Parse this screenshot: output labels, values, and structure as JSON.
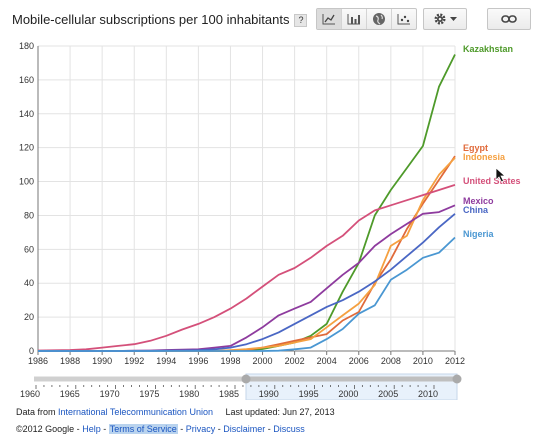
{
  "title": "Mobile-cellular subscriptions per 100 inhabitants",
  "help_label": "?",
  "toolbar": {
    "chart_types": [
      {
        "name": "line-chart-icon",
        "active": true
      },
      {
        "name": "bar-chart-icon",
        "active": false
      },
      {
        "name": "map-icon",
        "active": false
      },
      {
        "name": "bubble-chart-icon",
        "active": false
      }
    ],
    "settings_icon": "gear-icon",
    "link_icon": "link-icon"
  },
  "chart_data": {
    "type": "line",
    "title": "Mobile-cellular subscriptions per 100 inhabitants",
    "xlabel": "",
    "ylabel": "",
    "xlim": [
      1986,
      2012
    ],
    "ylim": [
      0,
      180
    ],
    "yticks": [
      0,
      20,
      40,
      60,
      80,
      100,
      120,
      140,
      160,
      180
    ],
    "xticks": [
      1986,
      1988,
      1990,
      1992,
      1994,
      1996,
      1998,
      2000,
      2002,
      2004,
      2006,
      2008,
      2010,
      2012
    ],
    "grid": true,
    "legend": "labels at right end of each line",
    "x": [
      1986,
      1987,
      1988,
      1989,
      1990,
      1991,
      1992,
      1993,
      1994,
      1995,
      1996,
      1997,
      1998,
      1999,
      2000,
      2001,
      2002,
      2003,
      2004,
      2005,
      2006,
      2007,
      2008,
      2009,
      2010,
      2011,
      2012
    ],
    "series": [
      {
        "name": "Kazakhstan",
        "color": "#4e9a2a",
        "values": [
          0,
          0,
          0,
          0,
          0,
          0,
          0,
          0,
          0,
          0,
          0,
          0,
          0.2,
          0.3,
          1.2,
          3,
          5,
          9,
          16,
          35,
          52,
          80,
          95,
          108,
          121,
          156,
          175
        ]
      },
      {
        "name": "Egypt",
        "color": "#e06a3a",
        "values": [
          0,
          0,
          0,
          0,
          0,
          0,
          0,
          0,
          0,
          0,
          0,
          0,
          0.2,
          0.6,
          2,
          4,
          6,
          8,
          10,
          18,
          23,
          40,
          54,
          72,
          87,
          101,
          115
        ]
      },
      {
        "name": "Indonesia",
        "color": "#f5a040",
        "values": [
          0,
          0,
          0,
          0,
          0,
          0,
          0,
          0,
          0,
          0,
          0,
          0,
          0.5,
          1.1,
          2,
          3,
          5,
          7,
          14,
          21,
          28,
          39,
          62,
          68,
          89,
          104,
          114
        ]
      },
      {
        "name": "United States",
        "color": "#d4507a",
        "values": [
          0.3,
          0.4,
          0.6,
          1,
          2,
          3,
          4,
          6,
          9,
          12.7,
          16,
          20,
          25,
          31,
          38,
          45,
          49,
          55,
          62,
          68,
          77,
          83,
          86,
          89,
          92,
          95,
          98
        ]
      },
      {
        "name": "Mexico",
        "color": "#8e3b9e",
        "values": [
          0,
          0,
          0,
          0,
          0,
          0,
          0.2,
          0.3,
          0.6,
          0.8,
          1,
          2,
          3,
          8,
          14,
          21,
          25,
          29,
          37,
          45,
          52,
          62,
          69,
          75,
          81,
          82,
          86
        ]
      },
      {
        "name": "China",
        "color": "#4a67c4",
        "values": [
          0,
          0,
          0,
          0,
          0,
          0,
          0,
          0,
          0.2,
          0.3,
          0.5,
          1,
          2,
          4,
          7,
          11,
          16,
          21,
          26,
          30,
          35,
          41,
          48,
          56,
          64,
          73,
          81
        ]
      },
      {
        "name": "Nigeria",
        "color": "#4a97d2",
        "values": [
          0,
          0,
          0,
          0,
          0,
          0,
          0,
          0,
          0,
          0,
          0,
          0,
          0,
          0,
          0,
          0.2,
          1,
          2,
          7,
          13,
          22,
          27,
          42,
          48,
          55,
          58,
          67
        ]
      }
    ]
  },
  "timeline": {
    "labels": [
      "1960",
      "1965",
      "1970",
      "1975",
      "1980",
      "1985",
      "1990",
      "1995",
      "2000",
      "2005",
      "2010"
    ]
  },
  "footer": {
    "data_from": "Data from",
    "source": "International Telecommunication Union",
    "updated": "Last updated: Jun 27, 2013",
    "copyright": "©2012 Google -",
    "links": [
      "Help",
      "Terms of Service",
      "Privacy",
      "Disclaimer",
      "Discuss"
    ]
  }
}
